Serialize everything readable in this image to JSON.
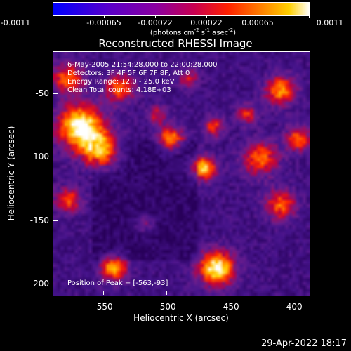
{
  "colorbar": {
    "ticks": [
      "-0.0011",
      "-0.00065",
      "-0.00022",
      "0.00022",
      "0.00065",
      "0.0011"
    ],
    "unit_main": "(photons cm",
    "unit_exp1": "-2",
    "unit_mid1": " s",
    "unit_exp2": "-1",
    "unit_mid2": " asec",
    "unit_exp3": "-2",
    "unit_end": ")"
  },
  "title": "Reconstructed RHESSI Image",
  "info": {
    "time": "6-May-2005 21:54:28.000 to 22:00:28.000",
    "detectors": "Detectors: 3F 4F 5F 6F 7F 8F, Att 0",
    "energy": "Energy Range: 12.0 - 25.0 keV",
    "clean": "Clean    Total counts: 4.18E+03",
    "peak": "Position of Peak = [-563,-93]"
  },
  "axes": {
    "xlabel": "Heliocentric X (arcsec)",
    "ylabel": "Heliocentric Y (arcsec)",
    "xticks": [
      "-550",
      "-500",
      "-450",
      "-400"
    ],
    "yticks": [
      "-50",
      "-100",
      "-150",
      "-200"
    ]
  },
  "timestamp": "29-Apr-2022 18:17"
}
